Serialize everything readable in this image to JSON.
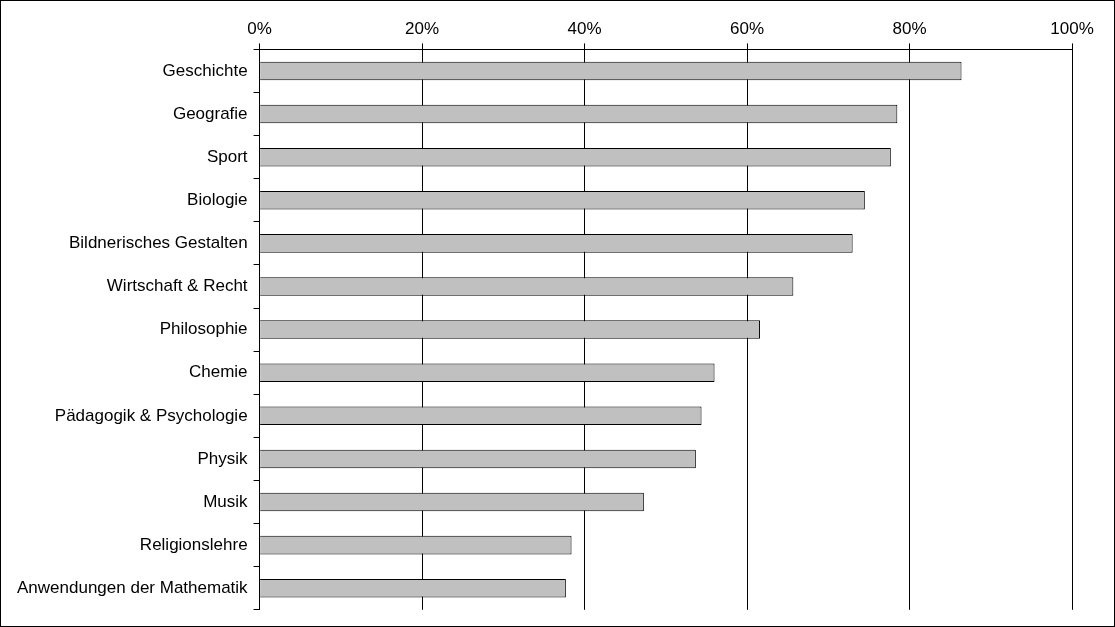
{
  "chart_data": {
    "type": "bar",
    "orientation": "horizontal",
    "categories": [
      "Geschichte",
      "Geografie",
      "Sport",
      "Biologie",
      "Bildnerisches Gestalten",
      "Wirtschaft & Recht",
      "Philosophie",
      "Chemie",
      "Pädagogik & Psychologie",
      "Physik",
      "Musik",
      "Religionslehre",
      "Anwendungen der Mathematik"
    ],
    "values": [
      86.4,
      78.5,
      77.7,
      74.5,
      73.0,
      65.7,
      61.6,
      56.0,
      54.4,
      53.7,
      47.3,
      38.4,
      37.7
    ],
    "color": "#c0c0c0",
    "xlim": [
      0,
      100
    ],
    "xticks": [
      {
        "value": 0,
        "label": "0%"
      },
      {
        "value": 20,
        "label": "20%"
      },
      {
        "value": 40,
        "label": "40%"
      },
      {
        "value": 60,
        "label": "60%"
      },
      {
        "value": 80,
        "label": "80%"
      },
      {
        "value": 100,
        "label": "100%"
      }
    ],
    "grid": "x",
    "legend": false
  }
}
